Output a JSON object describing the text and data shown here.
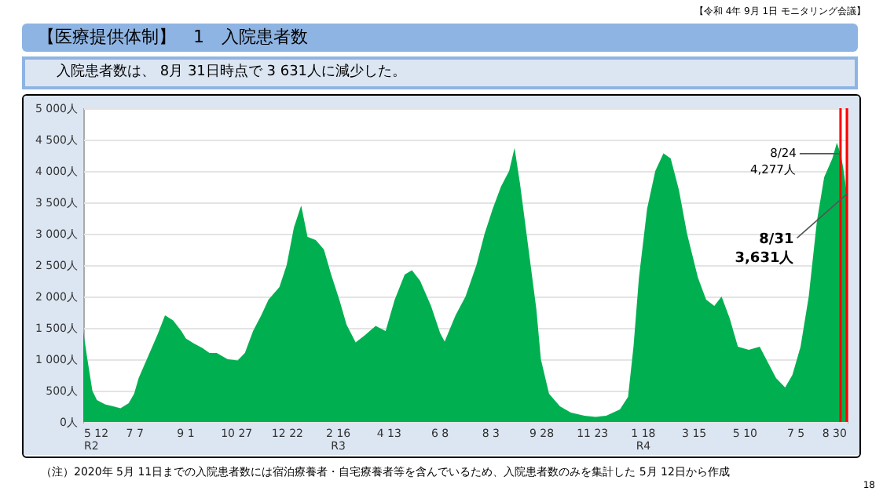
{
  "chart_data": {
    "type": "area",
    "title": "【医療提供体制】　1　入院患者数",
    "subtitle": "入院患者数は、 8月 31日時点で 3 631人に減少した。",
    "x": [
      "2020-05-12",
      "2020-05-16",
      "2020-05-22",
      "2020-05-27",
      "2020-06-05",
      "2020-06-14",
      "2020-06-22",
      "2020-07-01",
      "2020-07-07",
      "2020-07-12",
      "2020-07-18",
      "2020-07-27",
      "2020-08-02",
      "2020-08-10",
      "2020-08-19",
      "2020-08-28",
      "2020-09-02",
      "2020-09-11",
      "2020-09-20",
      "2020-09-28",
      "2020-10-06",
      "2020-10-18",
      "2020-10-29",
      "2020-11-06",
      "2020-11-15",
      "2020-11-24",
      "2020-12-02",
      "2020-12-14",
      "2020-12-22",
      "2020-12-30",
      "2021-01-07",
      "2021-01-14",
      "2021-01-23",
      "2021-02-01",
      "2021-02-09",
      "2021-02-18",
      "2021-02-26",
      "2021-03-08",
      "2021-03-18",
      "2021-03-30",
      "2021-04-10",
      "2021-04-20",
      "2021-05-01",
      "2021-05-09",
      "2021-05-18",
      "2021-05-30",
      "2021-06-09",
      "2021-06-14",
      "2021-06-26",
      "2021-07-07",
      "2021-07-19",
      "2021-07-28",
      "2021-08-06",
      "2021-08-15",
      "2021-08-24",
      "2021-08-30",
      "2021-09-05",
      "2021-09-14",
      "2021-09-23",
      "2021-09-28",
      "2021-10-07",
      "2021-10-19",
      "2021-10-31",
      "2021-11-15",
      "2021-11-27",
      "2021-12-09",
      "2021-12-24",
      "2022-01-02",
      "2022-01-08",
      "2022-01-14",
      "2022-01-23",
      "2022-02-01",
      "2022-02-10",
      "2022-02-18",
      "2022-02-27",
      "2022-03-08",
      "2022-03-20",
      "2022-03-29",
      "2022-04-07",
      "2022-04-15",
      "2022-04-24",
      "2022-05-03",
      "2022-05-15",
      "2022-05-27",
      "2022-06-05",
      "2022-06-14",
      "2022-06-24",
      "2022-07-02",
      "2022-07-11",
      "2022-07-20",
      "2022-07-29",
      "2022-08-06",
      "2022-08-15",
      "2022-08-20",
      "2022-08-24",
      "2022-08-27",
      "2022-08-31"
    ],
    "values": [
      1450,
      1050,
      500,
      350,
      280,
      250,
      220,
      300,
      450,
      700,
      900,
      1200,
      1400,
      1700,
      1620,
      1450,
      1330,
      1250,
      1180,
      1100,
      1100,
      1000,
      980,
      1100,
      1450,
      1700,
      1950,
      2150,
      2500,
      3100,
      3450,
      2950,
      2900,
      2750,
      2350,
      1950,
      1550,
      1270,
      1380,
      1530,
      1450,
      1950,
      2350,
      2420,
      2250,
      1850,
      1420,
      1280,
      1700,
      2000,
      2500,
      3000,
      3400,
      3750,
      4000,
      4370,
      3800,
      2800,
      1800,
      1000,
      450,
      250,
      150,
      100,
      80,
      100,
      200,
      400,
      1200,
      2300,
      3400,
      4000,
      4280,
      4200,
      3700,
      3000,
      2300,
      1950,
      1850,
      2000,
      1650,
      1200,
      1150,
      1200,
      950,
      700,
      550,
      750,
      1200,
      2000,
      3200,
      3900,
      4200,
      4450,
      4277,
      4050,
      3631
    ],
    "color": "#00b050",
    "xlim": [
      "2020-05-12",
      "2022-08-31"
    ],
    "xticks": [
      {
        "value": "2020-05-12",
        "label": "5 12\nR2"
      },
      {
        "value": "2020-07-07",
        "label": "7 7"
      },
      {
        "value": "2020-09-01",
        "label": "9 1"
      },
      {
        "value": "2020-10-27",
        "label": "10 27"
      },
      {
        "value": "2020-12-22",
        "label": "12 22"
      },
      {
        "value": "2021-02-16",
        "label": "2 16\nR3"
      },
      {
        "value": "2021-04-13",
        "label": "4 13"
      },
      {
        "value": "2021-06-08",
        "label": "6 8"
      },
      {
        "value": "2021-08-03",
        "label": "8 3"
      },
      {
        "value": "2021-09-28",
        "label": "9 28"
      },
      {
        "value": "2021-11-23",
        "label": "11 23"
      },
      {
        "value": "2022-01-18",
        "label": "1 18\nR4"
      },
      {
        "value": "2022-03-15",
        "label": "3 15"
      },
      {
        "value": "2022-05-10",
        "label": "5 10"
      },
      {
        "value": "2022-07-05",
        "label": "7 5"
      },
      {
        "value": "2022-08-30",
        "label": "8 30"
      }
    ],
    "ylim": [
      0,
      5000
    ],
    "yticks": [
      {
        "value": 0,
        "label": "0人"
      },
      {
        "value": 500,
        "label": "500人"
      },
      {
        "value": 1000,
        "label": "1 000人"
      },
      {
        "value": 1500,
        "label": "1 500人"
      },
      {
        "value": 2000,
        "label": "2 000人"
      },
      {
        "value": 2500,
        "label": "2 500人"
      },
      {
        "value": 3000,
        "label": "3 000人"
      },
      {
        "value": 3500,
        "label": "3 500人"
      },
      {
        "value": 4000,
        "label": "4 000人"
      },
      {
        "value": 4500,
        "label": "4 500人"
      },
      {
        "value": 5000,
        "label": "5 000人"
      }
    ],
    "grid": "y",
    "ref_lines": [
      {
        "axis": "x",
        "value": "2022-08-24",
        "color": "#ff0000"
      },
      {
        "axis": "x",
        "value": "2022-08-31",
        "color": "#ff0000"
      }
    ],
    "annotations": [
      {
        "text": "8/24\n4,277人",
        "x": "2022-08-24",
        "y": 4277
      },
      {
        "text": "8/31\n3,631人",
        "x": "2022-08-31",
        "y": 3631
      },
      "【令和 4年 9月 1日 モニタリング会議】",
      "（注）2020年 5月 11日までの入院患者数には宿泊療養者・自宅療養者等を含んでいるため、入院患者数のみを集計した 5月 12日から作成",
      "18"
    ]
  }
}
